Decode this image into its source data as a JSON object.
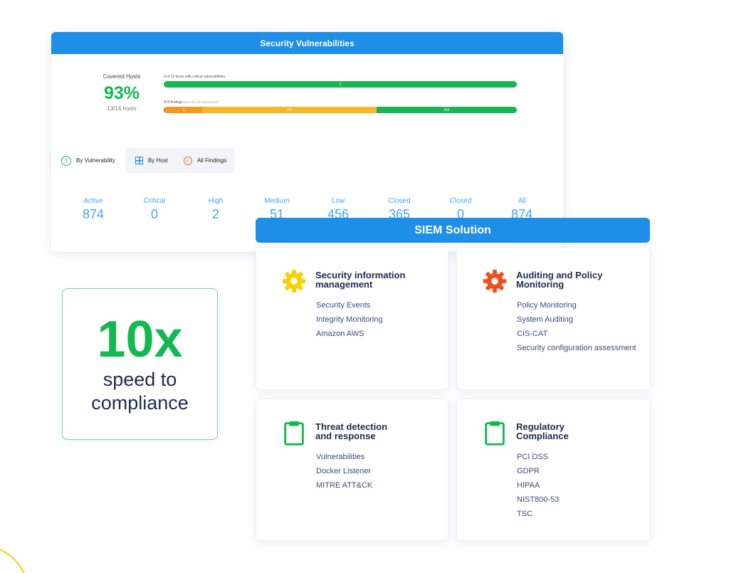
{
  "vulnerabilities": {
    "title": "Security Vulnerabilities",
    "covered": {
      "label": "Covered Hosts",
      "percent": "93%",
      "hosts": "13/14 hosts"
    },
    "bar1": {
      "caption": "0 of 13 hosts with critical vulnerabilities",
      "segment_label": "0"
    },
    "bar2": {
      "caption": "874 findings",
      "caption_suffix": "(across 13 resources)",
      "segments": [
        {
          "label": "0",
          "value": 0.5,
          "color": "#d42a1e"
        },
        {
          "label": "2",
          "value": 11,
          "color": "#f6961c"
        },
        {
          "label": "456",
          "value": 52,
          "color": "#fbb623"
        },
        {
          "label": "365",
          "value": 42,
          "color": "#14b850"
        }
      ]
    },
    "tabs": {
      "by_vulnerability": "By Vulnerability",
      "by_host": "By Host",
      "all_findings": "All Findings"
    },
    "stats": [
      {
        "label": "Active",
        "value": "874"
      },
      {
        "label": "Critical",
        "value": "0"
      },
      {
        "label": "High",
        "value": "2"
      },
      {
        "label": "Medium",
        "value": "51"
      },
      {
        "label": "Low",
        "value": "456"
      },
      {
        "label": "Closed",
        "value": "365"
      },
      {
        "label": "Closed",
        "value": "0"
      },
      {
        "label": "All",
        "value": "874"
      }
    ]
  },
  "speed": {
    "big": "10x",
    "line1": "speed to",
    "line2": "compliance"
  },
  "siem": {
    "title": "SIEM Solution",
    "cards": [
      {
        "title_line1": "Security information",
        "title_line2": "management",
        "icon": "gear-icon",
        "icon_color": "#f7d100",
        "items": [
          "Security Events",
          "Integrity Monitoring",
          "Amazon AWS"
        ]
      },
      {
        "title_line1": "Auditing and Policy",
        "title_line2": "Monitoring",
        "icon": "gear-icon",
        "icon_color": "#f04e1e",
        "items": [
          "Policy Monitoring",
          "System Auditing",
          "CIS-CAT",
          "Security configuration assessment"
        ]
      },
      {
        "title_line1": "Threat detection",
        "title_line2": "and response",
        "icon": "clipboard-icon",
        "icon_color": "#14b850",
        "items": [
          "Vulnerabilities",
          "Docker Listener",
          "MITRE ATT&CK"
        ]
      },
      {
        "title_line1": "Regulatory",
        "title_line2": "Compliance",
        "icon": "clipboard-icon",
        "icon_color": "#14b850",
        "items": [
          "PCI DSS",
          "GDPR",
          "HIPAA",
          "NIST800-53",
          "TSC"
        ]
      }
    ]
  }
}
